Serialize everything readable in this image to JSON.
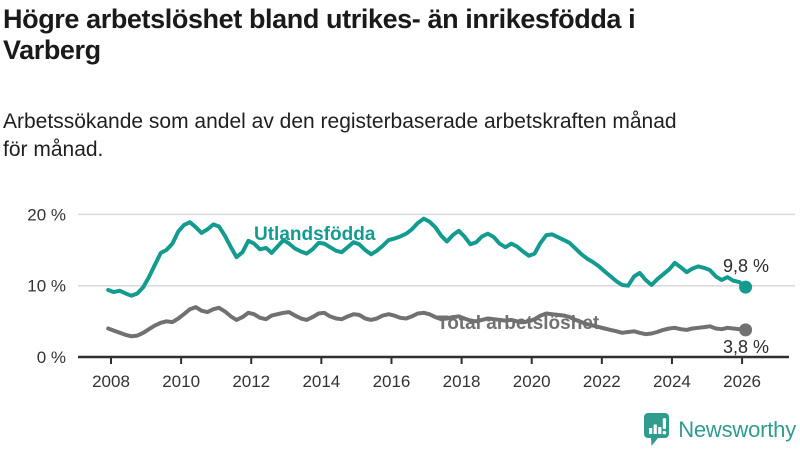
{
  "header": {
    "title": "Högre arbetslöshet bland utrikes- än inrikesfödda i\nVarberg",
    "subtitle": "Arbetssökande som andel av den registerbaserade arbetskraften månad\nför månad."
  },
  "branding": {
    "name": "Newsworthy",
    "icon": "speech-bubble-with-bar-chart-and-exclamation",
    "color": "#2f9c8f"
  },
  "chart_data": {
    "type": "line",
    "title": "Högre arbetslöshet bland utrikes- än inrikesfödda i Varberg",
    "subtitle": "Arbetssökande som andel av den registerbaserade arbetskraften månad för månad.",
    "xlabel": "",
    "ylabel": "",
    "grid": "horizontal-light",
    "legend_position": "inline-labels",
    "x_axis": {
      "ticks": [
        2008,
        2010,
        2012,
        2014,
        2016,
        2018,
        2020,
        2022,
        2024,
        2026
      ],
      "range": [
        2007.9,
        2026.5
      ]
    },
    "y_axis": {
      "unit": "%",
      "range": [
        0,
        21
      ],
      "ticks": [
        {
          "label": "0 %",
          "value": 0
        },
        {
          "label": "10 %",
          "value": 10
        },
        {
          "label": "20 %",
          "value": 20
        }
      ]
    },
    "series": [
      {
        "name": "Utlandsfödda",
        "color": "#149b8f",
        "end_label": "9,8 %",
        "end_value": 9.8,
        "points": [
          [
            2007.92,
            9.4
          ],
          [
            2008.08,
            9.1
          ],
          [
            2008.25,
            9.3
          ],
          [
            2008.42,
            8.9
          ],
          [
            2008.58,
            8.6
          ],
          [
            2008.75,
            8.9
          ],
          [
            2008.92,
            9.8
          ],
          [
            2009.08,
            11.2
          ],
          [
            2009.25,
            12.9
          ],
          [
            2009.42,
            14.6
          ],
          [
            2009.58,
            15.0
          ],
          [
            2009.75,
            15.9
          ],
          [
            2009.92,
            17.6
          ],
          [
            2010.08,
            18.5
          ],
          [
            2010.25,
            18.9
          ],
          [
            2010.42,
            18.2
          ],
          [
            2010.58,
            17.4
          ],
          [
            2010.75,
            17.9
          ],
          [
            2010.92,
            18.6
          ],
          [
            2011.08,
            18.3
          ],
          [
            2011.25,
            17.0
          ],
          [
            2011.42,
            15.4
          ],
          [
            2011.58,
            14.0
          ],
          [
            2011.75,
            14.7
          ],
          [
            2011.92,
            16.3
          ],
          [
            2012.08,
            15.9
          ],
          [
            2012.25,
            15.1
          ],
          [
            2012.42,
            15.3
          ],
          [
            2012.58,
            14.6
          ],
          [
            2012.75,
            15.5
          ],
          [
            2012.92,
            16.4
          ],
          [
            2013.08,
            15.9
          ],
          [
            2013.25,
            15.2
          ],
          [
            2013.42,
            14.8
          ],
          [
            2013.58,
            14.5
          ],
          [
            2013.75,
            15.1
          ],
          [
            2013.92,
            16.0
          ],
          [
            2014.08,
            15.9
          ],
          [
            2014.25,
            15.4
          ],
          [
            2014.42,
            14.9
          ],
          [
            2014.58,
            14.7
          ],
          [
            2014.75,
            15.4
          ],
          [
            2014.92,
            16.1
          ],
          [
            2015.08,
            15.8
          ],
          [
            2015.25,
            15.0
          ],
          [
            2015.42,
            14.4
          ],
          [
            2015.58,
            14.9
          ],
          [
            2015.75,
            15.6
          ],
          [
            2015.92,
            16.4
          ],
          [
            2016.08,
            16.6
          ],
          [
            2016.25,
            16.9
          ],
          [
            2016.42,
            17.3
          ],
          [
            2016.58,
            17.9
          ],
          [
            2016.75,
            18.8
          ],
          [
            2016.92,
            19.4
          ],
          [
            2017.08,
            19.0
          ],
          [
            2017.25,
            18.2
          ],
          [
            2017.42,
            17.0
          ],
          [
            2017.58,
            16.2
          ],
          [
            2017.75,
            17.1
          ],
          [
            2017.92,
            17.7
          ],
          [
            2018.08,
            16.9
          ],
          [
            2018.25,
            15.8
          ],
          [
            2018.42,
            16.1
          ],
          [
            2018.58,
            16.9
          ],
          [
            2018.75,
            17.3
          ],
          [
            2018.92,
            16.8
          ],
          [
            2019.08,
            15.9
          ],
          [
            2019.25,
            15.4
          ],
          [
            2019.42,
            15.9
          ],
          [
            2019.58,
            15.5
          ],
          [
            2019.75,
            14.8
          ],
          [
            2019.92,
            14.2
          ],
          [
            2020.08,
            14.5
          ],
          [
            2020.25,
            16.0
          ],
          [
            2020.42,
            17.1
          ],
          [
            2020.58,
            17.2
          ],
          [
            2020.75,
            16.8
          ],
          [
            2020.92,
            16.4
          ],
          [
            2021.08,
            16.0
          ],
          [
            2021.25,
            15.2
          ],
          [
            2021.42,
            14.4
          ],
          [
            2021.58,
            13.8
          ],
          [
            2021.75,
            13.3
          ],
          [
            2021.92,
            12.7
          ],
          [
            2022.08,
            12.0
          ],
          [
            2022.25,
            11.3
          ],
          [
            2022.42,
            10.6
          ],
          [
            2022.58,
            10.1
          ],
          [
            2022.75,
            10.0
          ],
          [
            2022.92,
            11.3
          ],
          [
            2023.08,
            11.8
          ],
          [
            2023.25,
            10.8
          ],
          [
            2023.42,
            10.1
          ],
          [
            2023.58,
            10.9
          ],
          [
            2023.75,
            11.6
          ],
          [
            2023.92,
            12.3
          ],
          [
            2024.08,
            13.2
          ],
          [
            2024.25,
            12.6
          ],
          [
            2024.42,
            11.9
          ],
          [
            2024.58,
            12.4
          ],
          [
            2024.75,
            12.7
          ],
          [
            2024.92,
            12.5
          ],
          [
            2025.08,
            12.2
          ],
          [
            2025.25,
            11.3
          ],
          [
            2025.42,
            10.8
          ],
          [
            2025.58,
            11.2
          ],
          [
            2025.75,
            10.7
          ],
          [
            2025.92,
            10.5
          ],
          [
            2026.1,
            9.8
          ]
        ]
      },
      {
        "name": "Total arbetslöshet",
        "color": "#717171",
        "end_label": "3,8 %",
        "end_value": 3.8,
        "points": [
          [
            2007.92,
            4.0
          ],
          [
            2008.08,
            3.7
          ],
          [
            2008.25,
            3.4
          ],
          [
            2008.42,
            3.1
          ],
          [
            2008.58,
            2.9
          ],
          [
            2008.75,
            3.0
          ],
          [
            2008.92,
            3.4
          ],
          [
            2009.08,
            3.9
          ],
          [
            2009.25,
            4.4
          ],
          [
            2009.42,
            4.8
          ],
          [
            2009.58,
            5.0
          ],
          [
            2009.75,
            4.9
          ],
          [
            2009.92,
            5.4
          ],
          [
            2010.08,
            6.0
          ],
          [
            2010.25,
            6.7
          ],
          [
            2010.42,
            7.0
          ],
          [
            2010.58,
            6.5
          ],
          [
            2010.75,
            6.3
          ],
          [
            2010.92,
            6.7
          ],
          [
            2011.08,
            6.9
          ],
          [
            2011.25,
            6.4
          ],
          [
            2011.42,
            5.7
          ],
          [
            2011.58,
            5.2
          ],
          [
            2011.75,
            5.6
          ],
          [
            2011.92,
            6.2
          ],
          [
            2012.08,
            6.0
          ],
          [
            2012.25,
            5.5
          ],
          [
            2012.42,
            5.3
          ],
          [
            2012.58,
            5.8
          ],
          [
            2012.75,
            6.0
          ],
          [
            2012.92,
            6.2
          ],
          [
            2013.08,
            6.3
          ],
          [
            2013.25,
            5.8
          ],
          [
            2013.42,
            5.4
          ],
          [
            2013.58,
            5.2
          ],
          [
            2013.75,
            5.6
          ],
          [
            2013.92,
            6.1
          ],
          [
            2014.08,
            6.2
          ],
          [
            2014.25,
            5.7
          ],
          [
            2014.42,
            5.4
          ],
          [
            2014.58,
            5.3
          ],
          [
            2014.75,
            5.7
          ],
          [
            2014.92,
            6.0
          ],
          [
            2015.08,
            5.9
          ],
          [
            2015.25,
            5.4
          ],
          [
            2015.42,
            5.2
          ],
          [
            2015.58,
            5.4
          ],
          [
            2015.75,
            5.8
          ],
          [
            2015.92,
            6.0
          ],
          [
            2016.08,
            5.8
          ],
          [
            2016.25,
            5.5
          ],
          [
            2016.42,
            5.4
          ],
          [
            2016.58,
            5.7
          ],
          [
            2016.75,
            6.1
          ],
          [
            2016.92,
            6.2
          ],
          [
            2017.08,
            6.0
          ],
          [
            2017.25,
            5.6
          ],
          [
            2017.42,
            5.3
          ],
          [
            2017.58,
            5.4
          ],
          [
            2017.75,
            5.6
          ],
          [
            2017.92,
            5.7
          ],
          [
            2018.08,
            5.4
          ],
          [
            2018.25,
            5.1
          ],
          [
            2018.42,
            5.0
          ],
          [
            2018.58,
            5.2
          ],
          [
            2018.75,
            5.4
          ],
          [
            2018.92,
            5.3
          ],
          [
            2019.08,
            5.2
          ],
          [
            2019.25,
            5.1
          ],
          [
            2019.42,
            5.2
          ],
          [
            2019.58,
            5.0
          ],
          [
            2019.75,
            4.9
          ],
          [
            2019.92,
            5.0
          ],
          [
            2020.08,
            5.3
          ],
          [
            2020.25,
            5.8
          ],
          [
            2020.42,
            6.1
          ],
          [
            2020.58,
            6.0
          ],
          [
            2020.75,
            5.9
          ],
          [
            2020.92,
            5.8
          ],
          [
            2021.08,
            5.6
          ],
          [
            2021.25,
            5.2
          ],
          [
            2021.42,
            4.9
          ],
          [
            2021.58,
            4.6
          ],
          [
            2021.75,
            4.4
          ],
          [
            2021.92,
            4.2
          ],
          [
            2022.08,
            4.0
          ],
          [
            2022.25,
            3.8
          ],
          [
            2022.42,
            3.6
          ],
          [
            2022.58,
            3.4
          ],
          [
            2022.75,
            3.5
          ],
          [
            2022.92,
            3.6
          ],
          [
            2023.08,
            3.4
          ],
          [
            2023.25,
            3.2
          ],
          [
            2023.42,
            3.3
          ],
          [
            2023.58,
            3.5
          ],
          [
            2023.75,
            3.8
          ],
          [
            2023.92,
            4.0
          ],
          [
            2024.08,
            4.1
          ],
          [
            2024.25,
            3.9
          ],
          [
            2024.42,
            3.8
          ],
          [
            2024.58,
            4.0
          ],
          [
            2024.75,
            4.1
          ],
          [
            2024.92,
            4.2
          ],
          [
            2025.08,
            4.3
          ],
          [
            2025.25,
            4.0
          ],
          [
            2025.42,
            3.9
          ],
          [
            2025.58,
            4.1
          ],
          [
            2025.75,
            4.0
          ],
          [
            2025.92,
            3.9
          ],
          [
            2026.1,
            3.8
          ]
        ]
      }
    ]
  }
}
